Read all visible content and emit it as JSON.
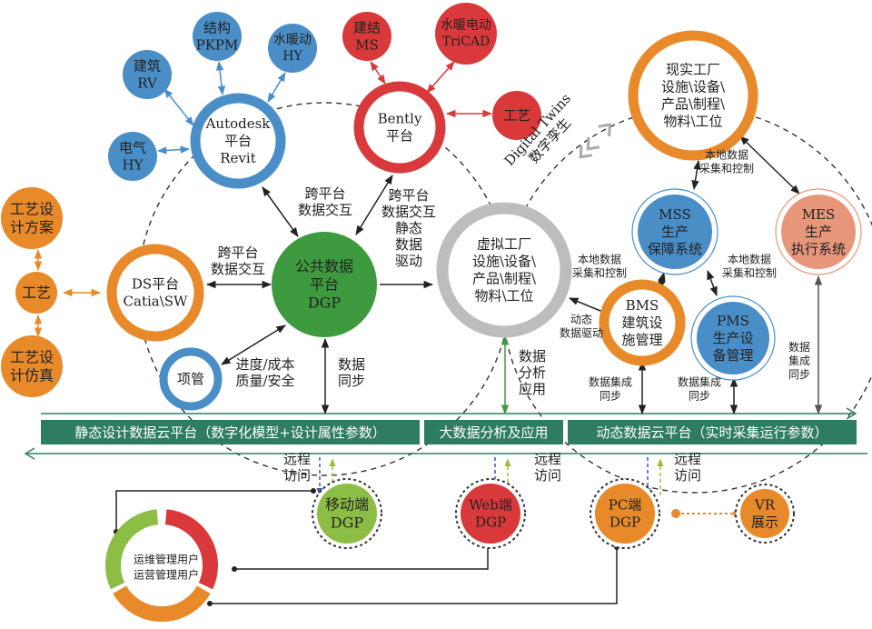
{
  "colors": {
    "blue": "#4a8ec8",
    "red": "#d9393b",
    "orange": "#e8892a",
    "green": "#3e9a3e",
    "gray": "#bdbdbd",
    "salmon": "#e8967a",
    "lime": "#8cbd45",
    "bar": "#2e7d62"
  },
  "nodes": {
    "autodesk": {
      "lines": [
        "Autodesk",
        "平台",
        "Revit"
      ]
    },
    "rv": {
      "lines": [
        "建筑",
        "RV"
      ]
    },
    "pkpm": {
      "lines": [
        "结构",
        "PKPM"
      ]
    },
    "hvac_hy": {
      "lines": [
        "水暖动",
        "HY"
      ]
    },
    "elec_hy": {
      "lines": [
        "电气",
        "HY"
      ]
    },
    "bently": {
      "lines": [
        "Bently",
        "平台"
      ]
    },
    "ms": {
      "lines": [
        "建结",
        "MS"
      ]
    },
    "tricad": {
      "lines": [
        "水暖电动",
        "TriCAD"
      ]
    },
    "process_r": {
      "lines": [
        "工艺"
      ]
    },
    "ds": {
      "lines": [
        "DS平台",
        "Catia\\SW"
      ]
    },
    "proc_plan": {
      "lines": [
        "工艺设",
        "计方案"
      ]
    },
    "proc": {
      "lines": [
        "工艺"
      ]
    },
    "proc_sim": {
      "lines": [
        "工艺设",
        "计仿真"
      ]
    },
    "dgp": {
      "lines": [
        "公共数据",
        "平台",
        "DGP"
      ]
    },
    "pm": {
      "lines": [
        "项管"
      ]
    },
    "virtual": {
      "lines": [
        "虚拟工厂",
        "设施\\设备\\",
        "产品\\制程\\",
        "物料\\工位"
      ]
    },
    "real": {
      "lines": [
        "现实工厂",
        "设施\\设备\\",
        "产品\\制程\\",
        "物料\\工位"
      ]
    },
    "mss": {
      "lines": [
        "MSS",
        "生产",
        "保障系统"
      ]
    },
    "mes": {
      "lines": [
        "MES",
        "生产",
        "执行系统"
      ]
    },
    "bms": {
      "lines": [
        "BMS",
        "建筑设",
        "施管理"
      ]
    },
    "pms": {
      "lines": [
        "PMS",
        "生产设",
        "备管理"
      ]
    },
    "mobile": {
      "lines": [
        "移动端",
        "DGP"
      ]
    },
    "web": {
      "lines": [
        "Web端",
        "DGP"
      ]
    },
    "pc": {
      "lines": [
        "PC端",
        "DGP"
      ]
    },
    "vr": {
      "lines": [
        "VR",
        "展示"
      ]
    }
  },
  "edge_labels": {
    "autodesk_dgp": [
      "跨平台",
      "数据交互"
    ],
    "bently_dgp": [
      "跨平台",
      "数据交互",
      "静态",
      "数据",
      "驱动"
    ],
    "ds_dgp": [
      "跨平台",
      "数据交互"
    ],
    "pm_dgp": [
      "进度/成本",
      "质量/安全"
    ],
    "dgp_sync": [
      "数据",
      "同步"
    ],
    "analysis": [
      "数据",
      "分析",
      "应用"
    ],
    "real_local": [
      "本地数据",
      "采集和控制"
    ],
    "mss_bms_local": [
      "本地数据",
      "采集和控制"
    ],
    "mss_pms_local": [
      "本地数据",
      "采集和控制"
    ],
    "bms_dynamic": [
      "动态",
      "数据驱动"
    ],
    "bms_sync": [
      "数据集成",
      "同步"
    ],
    "pms_sync": [
      "数据集成",
      "同步"
    ],
    "mes_sync": [
      "数据",
      "集成",
      "同步"
    ],
    "remote1": [
      "远程",
      "访问"
    ],
    "remote2": [
      "远程",
      "访问"
    ],
    "remote3": [
      "远程",
      "访问"
    ]
  },
  "digital_twins": {
    "en": "Digital Twins",
    "cn": "数字孪生"
  },
  "platform_bars": [
    "静态设计数据云平台（数字化模型+设计属性参数）",
    "大数据分析及应用",
    "动态数据云平台（实时采集运行参数）"
  ],
  "users": [
    "运维管理用户",
    "运营管理用户"
  ]
}
